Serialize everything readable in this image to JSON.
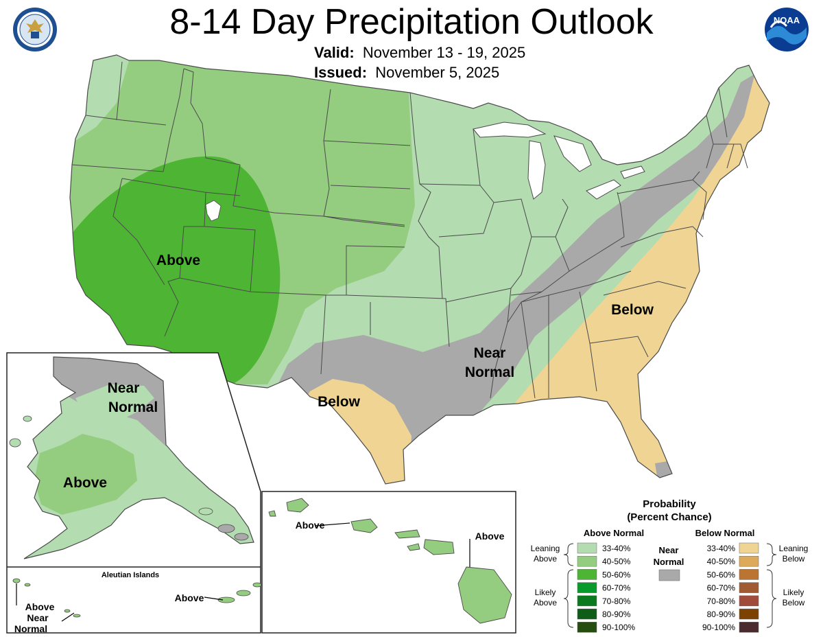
{
  "header": {
    "title": "8-14 Day Precipitation Outlook",
    "valid_label": "Valid:",
    "valid_value": "November 13 - 19, 2025",
    "issued_label": "Issued:",
    "issued_value": "November 5, 2025"
  },
  "logos": {
    "left": "department-of-commerce-seal",
    "right": "noaa-logo",
    "right_text": "NOAA"
  },
  "map_labels": {
    "conus_above": "Above",
    "conus_near_1": "Near",
    "conus_near_2": "Normal",
    "conus_below_east": "Below",
    "conus_below_tx": "Below",
    "ak_near_1": "Near",
    "ak_near_2": "Normal",
    "ak_above": "Above",
    "aleutian_title": "Aleutian Islands",
    "aleutian_above_west": "Above",
    "aleutian_near_1": "Near",
    "aleutian_near_2": "Normal",
    "aleutian_above_east": "Above",
    "hi_above_oahu": "Above",
    "hi_above_big": "Above"
  },
  "legend": {
    "title_1": "Probability",
    "title_2": "(Percent Chance)",
    "above_header": "Above Normal",
    "below_header": "Below Normal",
    "near_1": "Near",
    "near_2": "Normal",
    "leaning_above_1": "Leaning",
    "leaning_above_2": "Above",
    "likely_above_1": "Likely",
    "likely_above_2": "Above",
    "leaning_below_1": "Leaning",
    "leaning_below_2": "Below",
    "likely_below_1": "Likely",
    "likely_below_2": "Below",
    "near_color": "#a9a9a9",
    "above": [
      {
        "range": "33-40%",
        "color": "#b3dcb0"
      },
      {
        "range": "40-50%",
        "color": "#95cd80"
      },
      {
        "range": "50-60%",
        "color": "#4db533"
      },
      {
        "range": "60-70%",
        "color": "#089a2a"
      },
      {
        "range": "70-80%",
        "color": "#0b7a1f"
      },
      {
        "range": "80-90%",
        "color": "#0e5c17"
      },
      {
        "range": "90-100%",
        "color": "#254d10"
      }
    ],
    "below": [
      {
        "range": "33-40%",
        "color": "#f0d494"
      },
      {
        "range": "40-50%",
        "color": "#dcaa5a"
      },
      {
        "range": "50-60%",
        "color": "#bc7432"
      },
      {
        "range": "60-70%",
        "color": "#a05a32"
      },
      {
        "range": "70-80%",
        "color": "#a14b3a"
      },
      {
        "range": "80-90%",
        "color": "#7c4201"
      },
      {
        "range": "90-100%",
        "color": "#4b2b2d"
      }
    ]
  }
}
